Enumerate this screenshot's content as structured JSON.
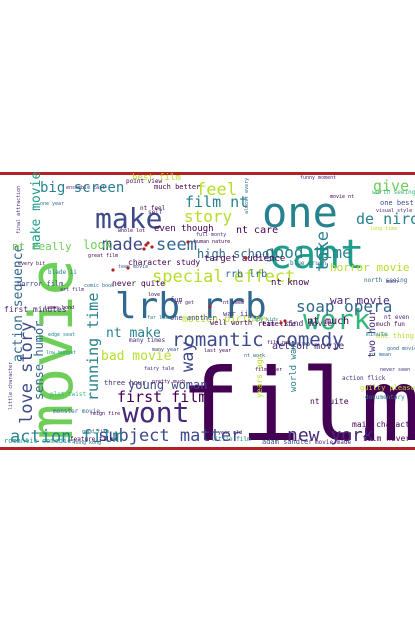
{
  "palette": {
    "background": "#ffffff",
    "border": "#b22222",
    "viridis": [
      "#440154",
      "#482878",
      "#3e4989",
      "#31688e",
      "#26828e",
      "#1f9e89",
      "#35b779",
      "#6ece58",
      "#b5de2b",
      "#fde725"
    ]
  },
  "words": [
    {
      "text": "film",
      "color": "#440154"
    },
    {
      "text": "movie",
      "color": "#6ece58"
    },
    {
      "text": "one",
      "color": "#26828e"
    },
    {
      "text": "cant",
      "color": "#1f9e89"
    },
    {
      "text": "lrb rrb",
      "color": "#31688e"
    },
    {
      "text": "make",
      "color": "#3e4989"
    },
    {
      "text": "work",
      "color": "#35b779"
    },
    {
      "text": "wont",
      "color": "#482878"
    },
    {
      "text": "romantic comedy",
      "color": "#3e4989"
    },
    {
      "text": "new york",
      "color": "#482878"
    },
    {
      "text": "special effect",
      "color": "#b5de2b"
    },
    {
      "text": "subject matter",
      "color": "#3e4989"
    },
    {
      "text": "action film",
      "color": "#26828e"
    },
    {
      "text": "love story",
      "color": "#3e4989"
    },
    {
      "text": "soap opera",
      "color": "#31688e"
    },
    {
      "text": "good time",
      "color": "#26828e"
    },
    {
      "text": "feel",
      "color": "#b5de2b"
    },
    {
      "text": "give",
      "color": "#6ece58"
    },
    {
      "text": "de niro",
      "color": "#26828e"
    },
    {
      "text": "story",
      "color": "#b5de2b"
    },
    {
      "text": "seem",
      "color": "#31688e"
    },
    {
      "text": "made",
      "color": "#3e4989"
    },
    {
      "text": "film nt",
      "color": "#26828e"
    },
    {
      "text": "first film",
      "color": "#440154"
    },
    {
      "text": "running time",
      "color": "#26828e"
    },
    {
      "text": "action sequence",
      "color": "#31688e"
    },
    {
      "text": "big screen",
      "color": "#26828e"
    },
    {
      "text": "make movie",
      "color": "#1f9e89"
    },
    {
      "text": "bad movie",
      "color": "#b5de2b"
    },
    {
      "text": "horror movie",
      "color": "#b5de2b"
    },
    {
      "text": "take",
      "color": "#26828e"
    },
    {
      "text": "way",
      "color": "#3e4989"
    },
    {
      "text": "nt really",
      "color": "#6ece58"
    },
    {
      "text": "sense humor",
      "color": "#31688e"
    },
    {
      "text": "look",
      "color": "#6ece58"
    },
    {
      "text": "young woman",
      "color": "#3e4989"
    },
    {
      "text": "high school",
      "color": "#31688e"
    },
    {
      "text": "nt make",
      "color": "#26828e"
    },
    {
      "text": "war movie",
      "color": "#482878"
    },
    {
      "text": "nt care",
      "color": "#440154"
    },
    {
      "text": "rrb lrb",
      "color": "#31688e"
    },
    {
      "text": "even though",
      "color": "#440154"
    },
    {
      "text": "character study",
      "color": "#440154"
    },
    {
      "text": "target audience",
      "color": "#440154"
    },
    {
      "text": "nt know",
      "color": "#440154"
    },
    {
      "text": "motion picture",
      "color": "#b5de2b"
    },
    {
      "text": "action movie",
      "color": "#482878"
    },
    {
      "text": "nt much",
      "color": "#440154"
    },
    {
      "text": "kind movie",
      "color": "#482878"
    },
    {
      "text": "two hour",
      "color": "#482878"
    },
    {
      "text": "world war",
      "color": "#26828e"
    },
    {
      "text": "never quite",
      "color": "#440154"
    },
    {
      "text": "first minutes",
      "color": "#482878"
    },
    {
      "text": "horror film",
      "color": "#3e4989"
    },
    {
      "text": "main character",
      "color": "#440154"
    },
    {
      "text": "adam sandler",
      "color": "#3e4989"
    },
    {
      "text": "film never",
      "color": "#440154"
    },
    {
      "text": "movie made",
      "color": "#482878"
    },
    {
      "text": "nt quite",
      "color": "#440154"
    },
    {
      "text": "romantic comedies",
      "color": "#1f9e89"
    },
    {
      "text": "much better",
      "color": "#440154"
    },
    {
      "text": "best film",
      "color": "#b5de2b"
    },
    {
      "text": "many times",
      "color": "#482878"
    },
    {
      "text": "one another",
      "color": "#3e4989"
    },
    {
      "text": "plot twist",
      "color": "#35b779"
    },
    {
      "text": "monster movie",
      "color": "#31688e"
    },
    {
      "text": "three hour",
      "color": "#482878"
    },
    {
      "text": "much fun",
      "color": "#440154"
    },
    {
      "text": "north seeing",
      "color": "#31688e"
    },
    {
      "text": "one thing",
      "color": "#b5de2b"
    },
    {
      "text": "one best",
      "color": "#3e4989"
    },
    {
      "text": "nt even",
      "color": "#482878"
    },
    {
      "text": "years ago",
      "color": "#b5de2b"
    },
    {
      "text": "nt feel",
      "color": "#440154"
    },
    {
      "text": "real life",
      "color": "#440154"
    },
    {
      "text": "point view",
      "color": "#440154"
    },
    {
      "text": "blade ii",
      "color": "#26828e"
    },
    {
      "text": "minute",
      "color": "#26828e"
    },
    {
      "text": "war ii",
      "color": "#482878"
    },
    {
      "text": "good movie",
      "color": "#31688e"
    },
    {
      "text": "action flick",
      "color": "#482878"
    },
    {
      "text": "guilty pleasure",
      "color": "#b5de2b"
    },
    {
      "text": "documentary",
      "color": "#26828e"
    },
    {
      "text": "worth seeing",
      "color": "#35b779"
    },
    {
      "text": "great film",
      "color": "#440154"
    },
    {
      "text": "time",
      "color": "#440154"
    },
    {
      "text": "fairy tale",
      "color": "#482878"
    },
    {
      "text": "edge seat",
      "color": "#26828e"
    },
    {
      "text": "full monty",
      "color": "#482878"
    },
    {
      "text": "human nature",
      "color": "#440154"
    },
    {
      "text": "year old",
      "color": "#482878"
    },
    {
      "text": "almost every",
      "color": "#31688e"
    },
    {
      "text": "blue crush",
      "color": "#31688e"
    },
    {
      "text": "never seen",
      "color": "#482878"
    },
    {
      "text": "little film",
      "color": "#26828e"
    },
    {
      "text": "feature film",
      "color": "#440154"
    },
    {
      "text": "film ever",
      "color": "#440154"
    },
    {
      "text": "film noir",
      "color": "#440154"
    },
    {
      "text": "visual style",
      "color": "#482878"
    },
    {
      "text": "movie nt",
      "color": "#440154"
    },
    {
      "text": "nt mean",
      "color": "#31688e"
    },
    {
      "text": "last year",
      "color": "#440154"
    },
    {
      "text": "one way",
      "color": "#31688e"
    },
    {
      "text": "well worth",
      "color": "#440154"
    },
    {
      "text": "little character",
      "color": "#482878"
    },
    {
      "text": "final attraction",
      "color": "#482878"
    },
    {
      "text": "ensemble cast",
      "color": "#482878"
    },
    {
      "text": "whole lot",
      "color": "#440154"
    },
    {
      "text": "james bond",
      "color": "#440154"
    },
    {
      "text": "nt get",
      "color": "#482878"
    },
    {
      "text": "far less",
      "color": "#26828e"
    },
    {
      "text": "spy kids",
      "color": "#26828e"
    },
    {
      "text": "good film",
      "color": "#31688e"
    },
    {
      "text": "much",
      "color": "#482878"
    },
    {
      "text": "every bit",
      "color": "#440154"
    },
    {
      "text": "teen movie",
      "color": "#31688e"
    },
    {
      "text": "pretty much",
      "color": "#440154"
    },
    {
      "text": "long time",
      "color": "#b5de2b"
    },
    {
      "text": "hong kong",
      "color": "#31688e"
    },
    {
      "text": "art film",
      "color": "#482878"
    },
    {
      "text": "comic book",
      "color": "#31688e"
    },
    {
      "text": "nt work",
      "color": "#31688e"
    },
    {
      "text": "reign fire",
      "color": "#440154"
    },
    {
      "text": "low budget",
      "color": "#1f9e89"
    },
    {
      "text": "funny moment",
      "color": "#482878"
    },
    {
      "text": "nt seem",
      "color": "#440154"
    },
    {
      "text": "one year",
      "color": "#31688e"
    },
    {
      "text": "many year",
      "color": "#3e4989"
    },
    {
      "text": "fun",
      "color": "#482878"
    },
    {
      "text": "self",
      "color": "#482878"
    },
    {
      "text": "love",
      "color": "#440154"
    }
  ]
}
